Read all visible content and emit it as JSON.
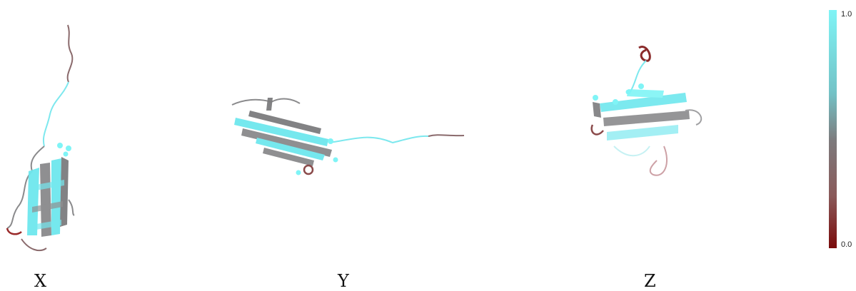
{
  "panels": [
    {
      "label": "X"
    },
    {
      "label": "Y"
    },
    {
      "label": "Z"
    }
  ],
  "colorbar": {
    "max_label": "1.0",
    "min_label": "0.0",
    "colors": {
      "high": "#7ff4f6",
      "mid": "#7d7a7c",
      "low": "#7a0b0b"
    }
  }
}
